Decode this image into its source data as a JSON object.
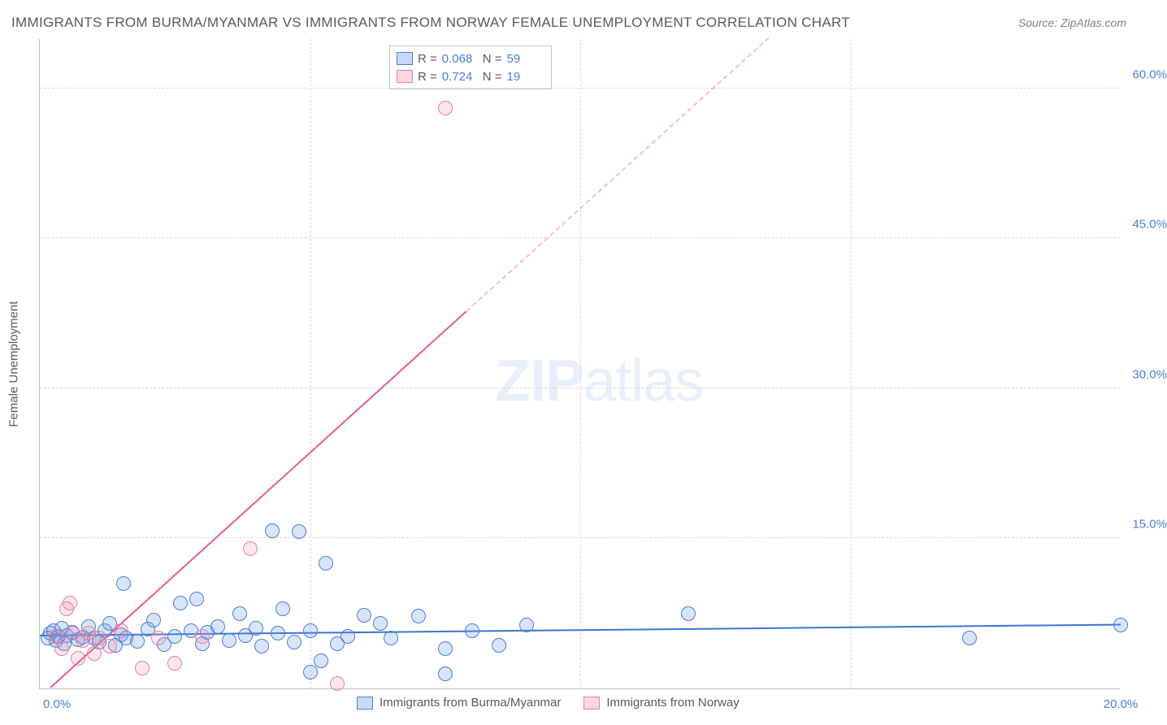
{
  "title": "IMMIGRANTS FROM BURMA/MYANMAR VS IMMIGRANTS FROM NORWAY FEMALE UNEMPLOYMENT CORRELATION CHART",
  "source": "Source: ZipAtlas.com",
  "watermark_bold": "ZIP",
  "watermark_light": "atlas",
  "chart": {
    "type": "scatter",
    "xlim": [
      0,
      20
    ],
    "ylim": [
      0,
      65
    ],
    "y_ticks": [
      15.0,
      30.0,
      45.0,
      60.0
    ],
    "y_tick_labels": [
      "15.0%",
      "30.0%",
      "45.0%",
      "60.0%"
    ],
    "x_ticks": [
      0,
      5,
      10,
      15,
      20
    ],
    "x_tick_labels": [
      "0.0%",
      "",
      "",
      "",
      "20.0%"
    ],
    "y_label": "Female Unemployment",
    "background_color": "#ffffff",
    "grid_color": "#d8d8d8",
    "axis_color": "#c0c0c0",
    "text_color": "#5a5a5a",
    "tick_text_color": "#4a7fd4"
  },
  "series": [
    {
      "id": "a",
      "name": "Immigrants from Burma/Myanmar",
      "color_fill": "rgba(100,150,230,0.25)",
      "color_stroke": "#4a7fd4",
      "trend_color": "#3b74d1",
      "marker": "circle",
      "marker_size": 18,
      "r": 0.068,
      "n": 59,
      "trend": {
        "x1": 0,
        "y1": 5.2,
        "x2": 20,
        "y2": 6.3
      },
      "points": [
        [
          0.15,
          5.0
        ],
        [
          0.2,
          5.5
        ],
        [
          0.25,
          5.8
        ],
        [
          0.3,
          4.8
        ],
        [
          0.35,
          5.2
        ],
        [
          0.4,
          6.0
        ],
        [
          0.45,
          4.5
        ],
        [
          0.5,
          5.3
        ],
        [
          0.6,
          5.6
        ],
        [
          0.7,
          4.9
        ],
        [
          0.8,
          5.1
        ],
        [
          0.9,
          6.2
        ],
        [
          1.0,
          5.0
        ],
        [
          1.1,
          4.6
        ],
        [
          1.2,
          5.8
        ],
        [
          1.3,
          6.5
        ],
        [
          1.4,
          4.3
        ],
        [
          1.5,
          5.4
        ],
        [
          1.55,
          10.5
        ],
        [
          1.6,
          5.0
        ],
        [
          1.8,
          4.7
        ],
        [
          2.0,
          5.9
        ],
        [
          2.1,
          6.8
        ],
        [
          2.3,
          4.4
        ],
        [
          2.5,
          5.2
        ],
        [
          2.6,
          8.5
        ],
        [
          2.8,
          5.8
        ],
        [
          2.9,
          8.9
        ],
        [
          3.0,
          4.5
        ],
        [
          3.1,
          5.6
        ],
        [
          3.3,
          6.2
        ],
        [
          3.5,
          4.8
        ],
        [
          3.7,
          7.5
        ],
        [
          3.8,
          5.3
        ],
        [
          4.0,
          6.0
        ],
        [
          4.1,
          4.2
        ],
        [
          4.3,
          15.8
        ],
        [
          4.4,
          5.5
        ],
        [
          4.5,
          8.0
        ],
        [
          4.7,
          4.6
        ],
        [
          4.8,
          15.7
        ],
        [
          5.0,
          5.8
        ],
        [
          5.0,
          1.6
        ],
        [
          5.2,
          2.8
        ],
        [
          5.3,
          12.5
        ],
        [
          5.5,
          4.5
        ],
        [
          5.7,
          5.2
        ],
        [
          6.0,
          7.3
        ],
        [
          6.3,
          6.5
        ],
        [
          6.5,
          5.0
        ],
        [
          7.0,
          7.2
        ],
        [
          7.5,
          1.5
        ],
        [
          7.5,
          4.0
        ],
        [
          8.0,
          5.8
        ],
        [
          8.5,
          4.3
        ],
        [
          9.0,
          6.3
        ],
        [
          12.0,
          7.5
        ],
        [
          17.2,
          5.0
        ],
        [
          20.0,
          6.3
        ]
      ]
    },
    {
      "id": "b",
      "name": "Immigrants from Norway",
      "color_fill": "rgba(240,140,170,0.22)",
      "color_stroke": "#e97da2",
      "trend_color": "#e85a8b",
      "marker": "circle",
      "marker_size": 18,
      "r": 0.724,
      "n": 19,
      "trend": {
        "x1": 0.2,
        "y1": 0,
        "x2": 13.5,
        "y2": 65
      },
      "trend_solid_end_x": 7.9,
      "points": [
        [
          0.3,
          5.2
        ],
        [
          0.4,
          4.0
        ],
        [
          0.5,
          8.0
        ],
        [
          0.55,
          8.5
        ],
        [
          0.6,
          5.5
        ],
        [
          0.7,
          3.0
        ],
        [
          0.8,
          4.8
        ],
        [
          0.9,
          5.5
        ],
        [
          1.0,
          3.5
        ],
        [
          1.1,
          5.0
        ],
        [
          1.3,
          4.2
        ],
        [
          1.5,
          5.8
        ],
        [
          1.9,
          2.0
        ],
        [
          2.2,
          5.0
        ],
        [
          2.5,
          2.5
        ],
        [
          3.0,
          5.2
        ],
        [
          3.9,
          14.0
        ],
        [
          5.5,
          0.5
        ],
        [
          7.5,
          58.0
        ]
      ]
    }
  ],
  "legend_top": {
    "r_label": "R =",
    "n_label": "N =",
    "rows": [
      {
        "series": "a",
        "r": "0.068",
        "n": "59"
      },
      {
        "series": "b",
        "r": "0.724",
        "n": "19"
      }
    ]
  },
  "legend_bottom": [
    {
      "series": "a",
      "label": "Immigrants from Burma/Myanmar"
    },
    {
      "series": "b",
      "label": "Immigrants from Norway"
    }
  ]
}
